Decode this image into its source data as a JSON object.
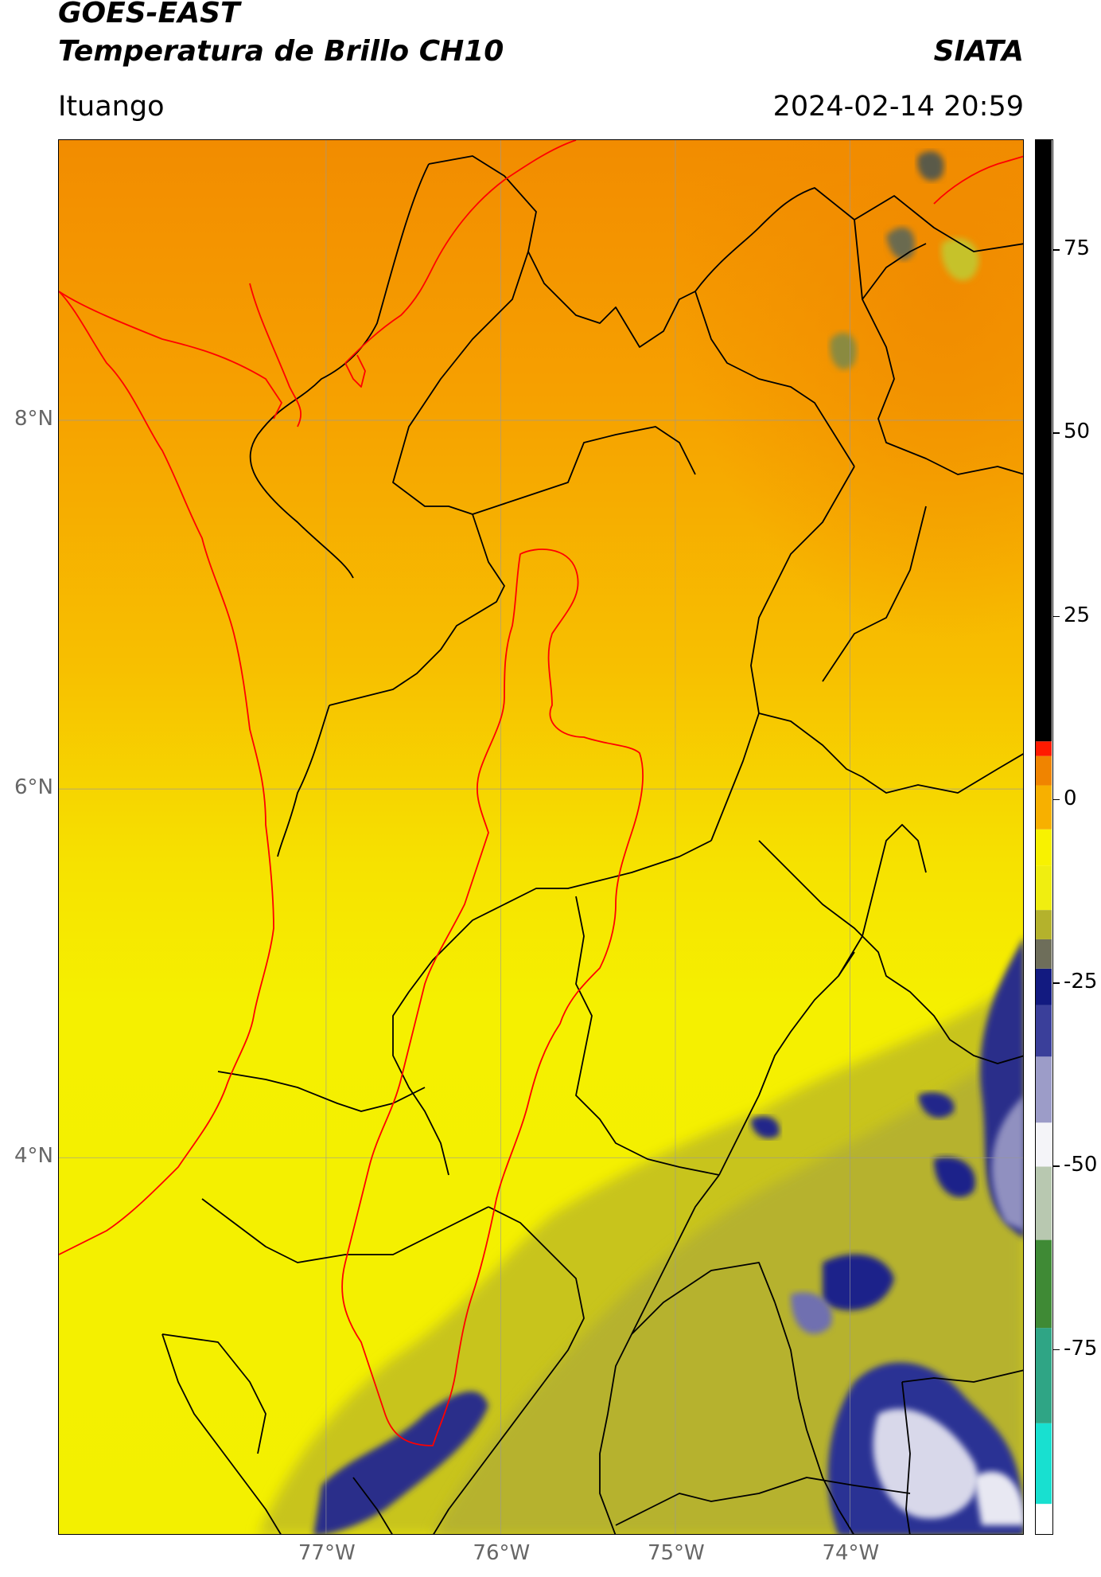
{
  "header": {
    "satellite": "GOES-EAST",
    "product": "Temperatura de Brillo CH10",
    "agency": "SIATA",
    "location": "Ituango",
    "datetime": "2024-02-14 20:59"
  },
  "map": {
    "lat_labels": [
      "8°N",
      "6°N",
      "4°N"
    ],
    "lon_labels": [
      "77°W",
      "76°W",
      "75°W",
      "74°W"
    ],
    "lat_values": [
      8,
      6,
      4
    ],
    "lon_values": [
      -77,
      -76,
      -75,
      -74
    ],
    "extent": {
      "lon_min": -78.53,
      "lon_max": -73.0,
      "lat_min": 1.95,
      "lat_max": 9.52
    },
    "colors": {
      "warm_orange": "#f28c00",
      "orange_yellow": "#f7b400",
      "yellow": "#f5f200",
      "olive": "#b9b72a",
      "navy": "#16187a",
      "political_lines": "#000000",
      "antioquia_outline": "#ff0000"
    }
  },
  "colorbar": {
    "ticks": [
      "75",
      "50",
      "25",
      "0",
      "-25",
      "-50",
      "-75"
    ],
    "tick_values": [
      75,
      50,
      25,
      0,
      -25,
      -50,
      -75
    ],
    "range": [
      -100,
      90
    ],
    "segments": [
      {
        "from": -100,
        "to": -96,
        "color": "#ffffff"
      },
      {
        "from": -96,
        "to": -85,
        "color": "#18e0d0"
      },
      {
        "from": -85,
        "to": -72,
        "color": "#2fa585"
      },
      {
        "from": -72,
        "to": -60,
        "color": "#3f8a35"
      },
      {
        "from": -60,
        "to": -50,
        "color": "#b8c8b0"
      },
      {
        "from": -50,
        "to": -44,
        "color": "#f4f4f8"
      },
      {
        "from": -44,
        "to": -35,
        "color": "#9c9cc8"
      },
      {
        "from": -35,
        "to": -28,
        "color": "#3a3f9a"
      },
      {
        "from": -28,
        "to": -23,
        "color": "#121a80"
      },
      {
        "from": -23,
        "to": -19,
        "color": "#6e6e5a"
      },
      {
        "from": -19,
        "to": -15,
        "color": "#b4b22c"
      },
      {
        "from": -15,
        "to": -9,
        "color": "#f0ee10"
      },
      {
        "from": -9,
        "to": -4,
        "color": "#f8f200"
      },
      {
        "from": -4,
        "to": 2,
        "color": "#f7b000"
      },
      {
        "from": 2,
        "to": 6,
        "color": "#f08400"
      },
      {
        "from": 6,
        "to": 8,
        "color": "#ff1a00"
      },
      {
        "from": 8,
        "to": 90,
        "color": "#000000"
      }
    ]
  }
}
